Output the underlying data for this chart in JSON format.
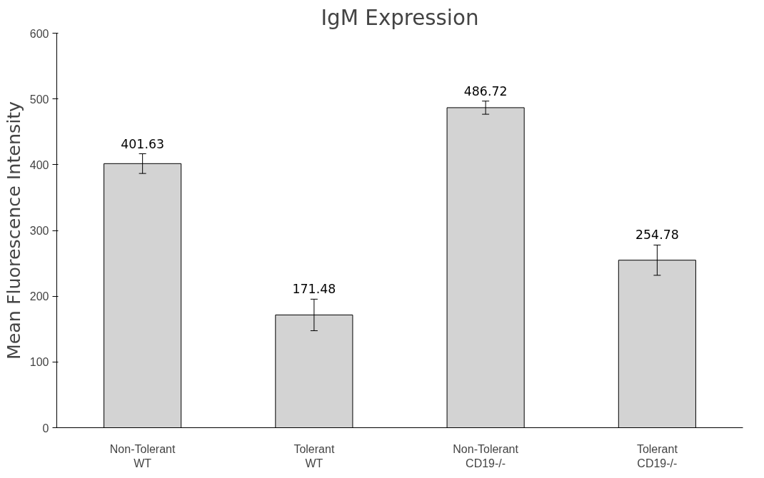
{
  "chart_data": {
    "type": "bar",
    "title": "IgM Expression",
    "ylabel": "Mean Fluorescence Intensity",
    "categories": [
      "Non-Tolerant\nWT",
      "Tolerant\nWT",
      "Non-Tolerant\nCD19-/-",
      "Tolerant\nCD19-/-"
    ],
    "values": [
      401.63,
      171.48,
      486.72,
      254.78
    ],
    "errors": [
      15,
      24,
      10,
      23
    ],
    "color": "#d3d3d3",
    "ylim": [
      0,
      600
    ],
    "yticks": [
      0,
      100,
      200,
      300,
      400,
      500,
      600
    ],
    "data_labels": true,
    "grid": false
  }
}
